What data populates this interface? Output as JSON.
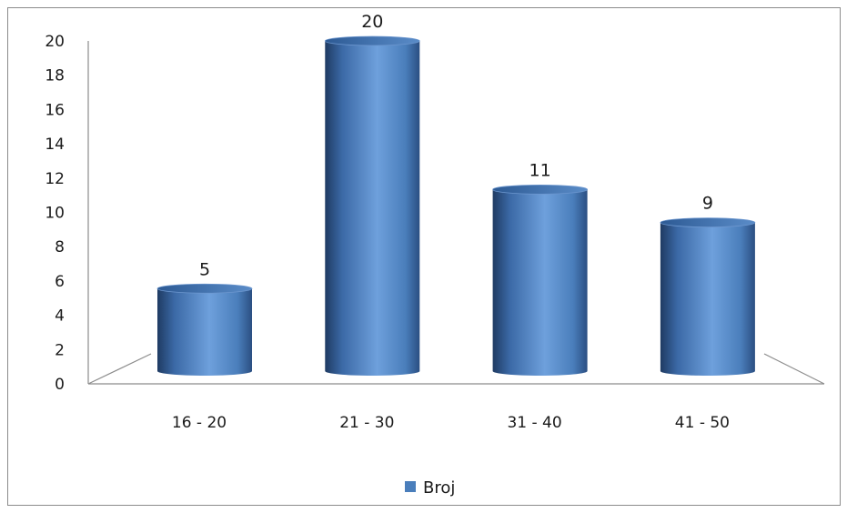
{
  "chart_data": {
    "type": "bar",
    "style": "3d-cylinder",
    "categories": [
      "16 - 20",
      "21 - 30",
      "31 - 40",
      "41 - 50"
    ],
    "series": [
      {
        "name": "Broj",
        "values": [
          5,
          20,
          11,
          9
        ],
        "color": "#4a7ebb"
      }
    ],
    "data_labels": [
      "5",
      "20",
      "11",
      "9"
    ],
    "ylim": [
      0,
      20
    ],
    "yticks": [
      "0",
      "2",
      "4",
      "6",
      "8",
      "10",
      "12",
      "14",
      "16",
      "18",
      "20"
    ],
    "grid": false,
    "legend_position": "bottom",
    "colors": {
      "bar_light": "#6ea0dc",
      "bar_mid": "#4a7ebb",
      "bar_dark": "#1f3b63",
      "axis": "#8c8c8c"
    }
  }
}
